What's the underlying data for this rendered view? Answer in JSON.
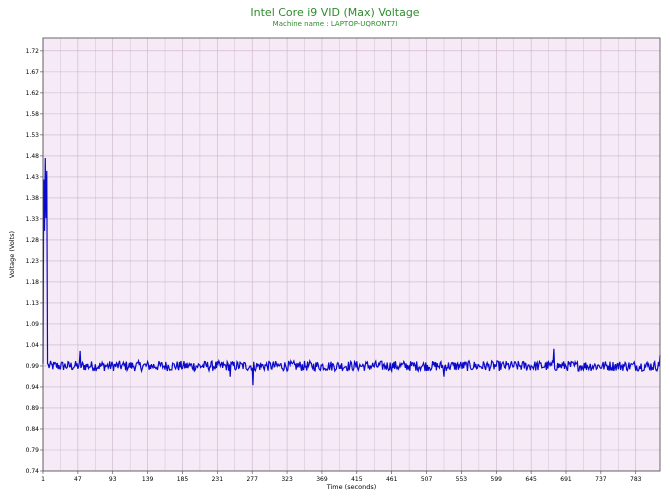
{
  "chart_data": {
    "type": "line",
    "title": "Intel Core i9 VID (Max) Voltage",
    "subtitle": "Machine name : LAPTOP-UQRONT7I",
    "xlabel": "Time (seconds)",
    "ylabel": "Voltage (Volts)",
    "xlim": [
      1,
      815
    ],
    "ylim": [
      0.74,
      1.75
    ],
    "x_ticks": [
      1,
      47,
      93,
      139,
      185,
      231,
      277,
      323,
      369,
      415,
      461,
      507,
      553,
      599,
      645,
      691,
      737,
      783
    ],
    "y_ticks": [
      "0.74",
      "0.79",
      "0.84",
      "0.89",
      "0.94",
      "0.99",
      "1.04",
      "1.09",
      "1.13",
      "1.18",
      "1.23",
      "1.28",
      "1.33",
      "1.38",
      "1.43",
      "1.48",
      "1.53",
      "1.58",
      "1.62",
      "1.67",
      "1.72"
    ],
    "grid": true,
    "background_color": "#f7eaf7",
    "grid_color": "#c9b2c9",
    "line_color": "#0a0ac8",
    "series": [
      {
        "name": "",
        "spike_points": [
          [
            1,
            0.99
          ],
          [
            2,
            1.42
          ],
          [
            3,
            1.3
          ],
          [
            4,
            1.47
          ],
          [
            5,
            1.33
          ],
          [
            6,
            1.44
          ],
          [
            7,
            0.99
          ]
        ],
        "baseline": 0.985,
        "noise_amplitude": 0.012,
        "dips": [
          [
            278,
            0.94
          ],
          [
            248,
            0.96
          ],
          [
            530,
            0.96
          ]
        ],
        "peaks": [
          [
            50,
            1.02
          ],
          [
            675,
            1.025
          ],
          [
            815,
            1.01
          ]
        ]
      }
    ]
  }
}
